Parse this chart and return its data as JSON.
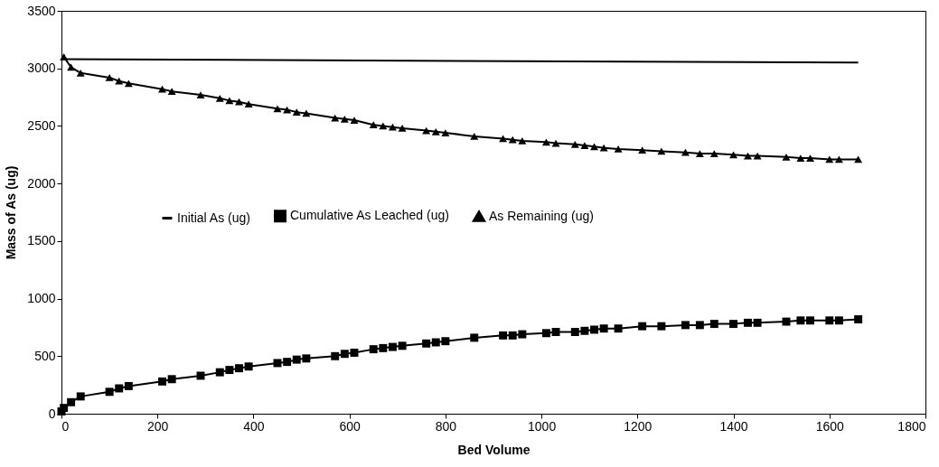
{
  "chart_data": {
    "type": "line",
    "xlabel": "Bed Volume",
    "ylabel": "Mass of As (ug)",
    "xlim": [
      0,
      1800
    ],
    "xticks": [
      0,
      200,
      400,
      600,
      800,
      1000,
      1200,
      1400,
      1600,
      1800
    ],
    "ylim": [
      0,
      3500
    ],
    "yticks": [
      0,
      500,
      1000,
      1500,
      2000,
      2500,
      3000,
      3500
    ],
    "grid": false,
    "legend": "center",
    "line_style": "solid",
    "series": [
      {
        "name": "Initial As (ug)",
        "color": "#000000",
        "marker": "none",
        "x": [
          0,
          1660
        ],
        "values": [
          3080,
          3050
        ]
      },
      {
        "name": "Cumulative As Leached (ug)",
        "color": "#000000",
        "marker": "square",
        "x": [
          0,
          5,
          20,
          40,
          100,
          120,
          140,
          210,
          230,
          290,
          330,
          350,
          370,
          390,
          450,
          470,
          490,
          510,
          570,
          590,
          610,
          650,
          670,
          690,
          710,
          760,
          780,
          800,
          860,
          920,
          940,
          960,
          1010,
          1030,
          1070,
          1090,
          1110,
          1130,
          1160,
          1210,
          1250,
          1300,
          1330,
          1360,
          1400,
          1430,
          1450,
          1510,
          1540,
          1560,
          1600,
          1620,
          1660
        ],
        "values": [
          20,
          50,
          100,
          150,
          190,
          220,
          240,
          280,
          300,
          330,
          360,
          380,
          395,
          410,
          440,
          450,
          470,
          480,
          500,
          520,
          530,
          560,
          570,
          580,
          590,
          610,
          620,
          630,
          660,
          680,
          680,
          690,
          700,
          710,
          710,
          720,
          730,
          740,
          740,
          760,
          760,
          770,
          770,
          780,
          780,
          790,
          790,
          800,
          810,
          810,
          810,
          810,
          820
        ]
      },
      {
        "name": "As Remaining (ug)",
        "color": "#000000",
        "marker": "triangle",
        "x": [
          5,
          20,
          40,
          100,
          120,
          140,
          210,
          230,
          290,
          330,
          350,
          370,
          390,
          450,
          470,
          490,
          510,
          570,
          590,
          610,
          650,
          670,
          690,
          710,
          760,
          780,
          800,
          860,
          920,
          940,
          960,
          1010,
          1030,
          1070,
          1090,
          1110,
          1130,
          1160,
          1210,
          1250,
          1300,
          1330,
          1360,
          1400,
          1430,
          1450,
          1510,
          1540,
          1560,
          1600,
          1620,
          1660
        ],
        "values": [
          3100,
          3010,
          2960,
          2920,
          2890,
          2870,
          2820,
          2800,
          2770,
          2740,
          2720,
          2710,
          2690,
          2650,
          2640,
          2620,
          2610,
          2570,
          2560,
          2550,
          2510,
          2500,
          2490,
          2480,
          2460,
          2450,
          2440,
          2410,
          2390,
          2380,
          2370,
          2360,
          2350,
          2340,
          2330,
          2320,
          2310,
          2300,
          2290,
          2280,
          2270,
          2260,
          2260,
          2250,
          2240,
          2240,
          2230,
          2220,
          2220,
          2210,
          2210,
          2210
        ]
      }
    ]
  }
}
